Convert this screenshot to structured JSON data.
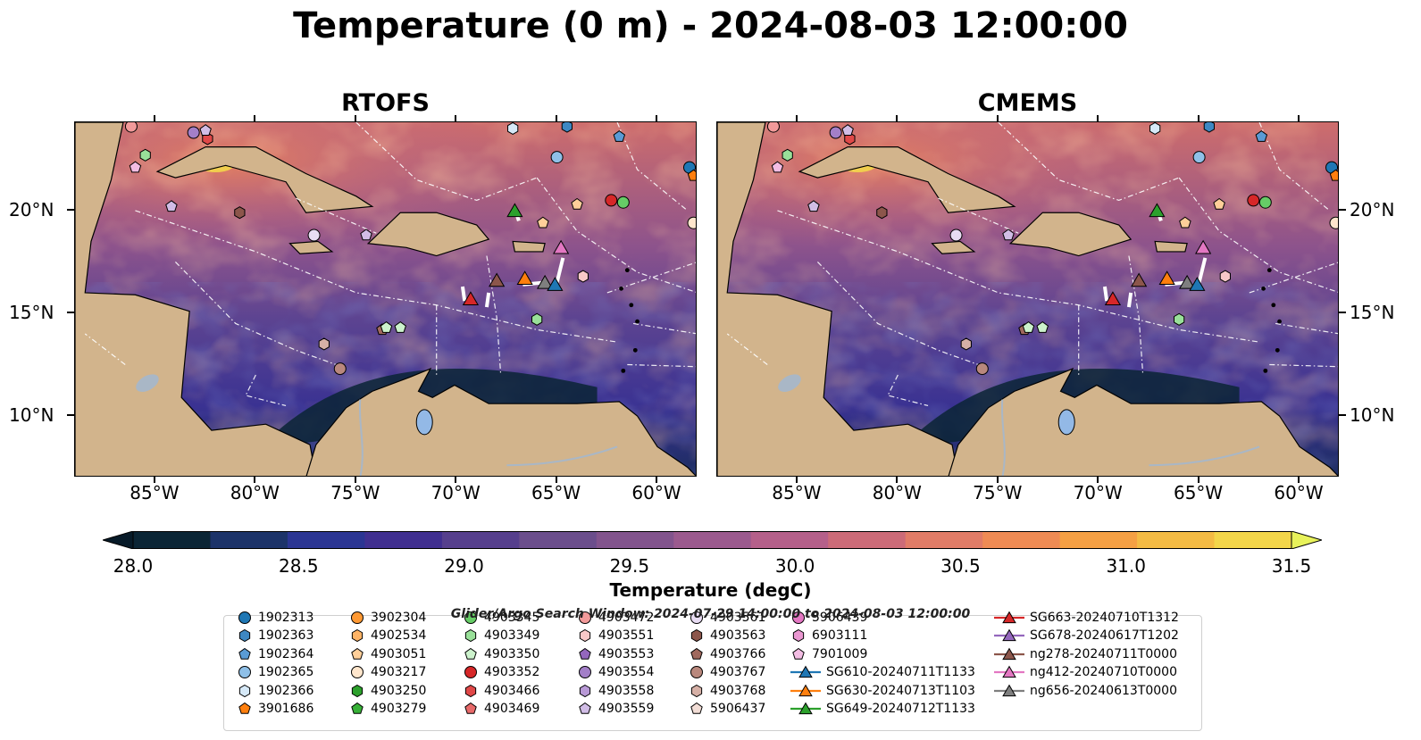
{
  "figure": {
    "title": "Temperature (0 m) - 2024-08-03 12:00:00",
    "colors": {
      "land": "#d2b48c",
      "water_body": "#93b9e6",
      "river": "#a9b7c6"
    }
  },
  "chart_data": [
    {
      "type": "heatmap",
      "title": "RTOFS",
      "x_ticks": [
        "85°W",
        "80°W",
        "75°W",
        "70°W",
        "65°W",
        "60°W"
      ],
      "y_ticks": [
        "20°N",
        "15°N",
        "10°N"
      ],
      "lon_range": [
        -89,
        -58
      ],
      "lat_range": [
        7,
        24.3
      ]
    },
    {
      "type": "heatmap",
      "title": "CMEMS",
      "x_ticks": [
        "85°W",
        "80°W",
        "75°W",
        "70°W",
        "65°W",
        "60°W"
      ],
      "y_ticks": [
        "20°N",
        "15°N",
        "10°N"
      ],
      "lon_range": [
        -89,
        -58
      ],
      "lat_range": [
        7,
        24.3
      ]
    }
  ],
  "colorbar": {
    "label": "Temperature (degC)",
    "min": 28.0,
    "max": 31.5,
    "step": 0.25,
    "ticks": [
      "28.0",
      "28.5",
      "29.0",
      "29.5",
      "30.0",
      "30.5",
      "31.0",
      "31.5"
    ],
    "extend": "both",
    "colors": [
      "#0b2535",
      "#1c3369",
      "#2b3593",
      "#402f90",
      "#563f8d",
      "#6b4e8c",
      "#82548d",
      "#9b5a8e",
      "#b5608a",
      "#cc6b78",
      "#e17c67",
      "#ef8b54",
      "#f5a044",
      "#f4bb44",
      "#f3d64a"
    ],
    "under_color": "#071a28",
    "over_color": "#e8f25a"
  },
  "legend": {
    "title": "Glider/Argo Search Window: 2024-07-29 14:00:00 to 2024-08-03 12:00:00",
    "columns": [
      [
        {
          "label": "1902313",
          "marker": "circle",
          "color": "#1f77b4"
        },
        {
          "label": "1902363",
          "marker": "hexagon",
          "color": "#3e88c3"
        },
        {
          "label": "1902364",
          "marker": "pentagon",
          "color": "#5a9bd5"
        },
        {
          "label": "1902365",
          "marker": "circle",
          "color": "#8fc0e8"
        },
        {
          "label": "1902366",
          "marker": "hexagon",
          "color": "#d6e9f8"
        },
        {
          "label": "3901686",
          "marker": "pentagon",
          "color": "#ff7f0e"
        }
      ],
      [
        {
          "label": "3902304",
          "marker": "circle",
          "color": "#ff9933"
        },
        {
          "label": "4902534",
          "marker": "hexagon",
          "color": "#ffb466"
        },
        {
          "label": "4903051",
          "marker": "pentagon",
          "color": "#ffcf99"
        },
        {
          "label": "4903217",
          "marker": "circle",
          "color": "#ffe6cc"
        },
        {
          "label": "4903250",
          "marker": "hexagon",
          "color": "#2ca02c"
        },
        {
          "label": "4903279",
          "marker": "pentagon",
          "color": "#37b137"
        }
      ],
      [
        {
          "label": "4903345",
          "marker": "circle",
          "color": "#66cc66"
        },
        {
          "label": "4903349",
          "marker": "hexagon",
          "color": "#99e099"
        },
        {
          "label": "4903350",
          "marker": "pentagon",
          "color": "#ccf2cc"
        },
        {
          "label": "4903352",
          "marker": "circle",
          "color": "#d62728"
        },
        {
          "label": "4903466",
          "marker": "hexagon",
          "color": "#e04848"
        },
        {
          "label": "4903469",
          "marker": "pentagon",
          "color": "#e86a6a"
        }
      ],
      [
        {
          "label": "4903472",
          "marker": "circle",
          "color": "#f29a9a"
        },
        {
          "label": "4903551",
          "marker": "hexagon",
          "color": "#f8c8c8"
        },
        {
          "label": "4903553",
          "marker": "pentagon",
          "color": "#9467bd"
        },
        {
          "label": "4903554",
          "marker": "circle",
          "color": "#a37fc8"
        },
        {
          "label": "4903558",
          "marker": "hexagon",
          "color": "#b899d6"
        },
        {
          "label": "4903559",
          "marker": "pentagon",
          "color": "#d1bde6"
        }
      ],
      [
        {
          "label": "4903561",
          "marker": "circle",
          "color": "#e8dcf3"
        },
        {
          "label": "4903563",
          "marker": "hexagon",
          "color": "#8c564b"
        },
        {
          "label": "4903766",
          "marker": "pentagon",
          "color": "#a0695e"
        },
        {
          "label": "4903767",
          "marker": "circle",
          "color": "#b9887d"
        },
        {
          "label": "4903768",
          "marker": "hexagon",
          "color": "#d6b0a6"
        },
        {
          "label": "5906437",
          "marker": "pentagon",
          "color": "#f2ddd6"
        }
      ],
      [
        {
          "label": "5906439",
          "marker": "circle",
          "color": "#e377c2"
        },
        {
          "label": "6903111",
          "marker": "hexagon",
          "color": "#ea97d1"
        },
        {
          "label": "7901009",
          "marker": "pentagon",
          "color": "#f3bde3"
        },
        {
          "label": "SG610-20240711T1133",
          "marker": "line-triangle",
          "color": "#1f77b4"
        },
        {
          "label": "SG630-20240713T1103",
          "marker": "line-triangle",
          "color": "#ff7f0e"
        },
        {
          "label": "SG649-20240712T1133",
          "marker": "line-triangle",
          "color": "#2ca02c"
        }
      ],
      [
        {
          "label": "SG663-20240710T1312",
          "marker": "line-triangle",
          "color": "#d62728"
        },
        {
          "label": "SG678-20240617T1202",
          "marker": "line-triangle",
          "color": "#9467bd"
        },
        {
          "label": "ng278-20240711T0000",
          "marker": "line-triangle",
          "color": "#8c564b"
        },
        {
          "label": "ng412-20240710T0000",
          "marker": "line-triangle",
          "color": "#e377c2"
        },
        {
          "label": "ng656-20240613T0000",
          "marker": "line-triangle",
          "color": "#7f7f7f"
        }
      ]
    ]
  },
  "markers": [
    {
      "label": "1902313",
      "lon": -58.4,
      "lat": 22.1
    },
    {
      "label": "1902364",
      "lon": -61.9,
      "lat": 23.6
    },
    {
      "label": "1902365",
      "lon": -65.0,
      "lat": 22.6
    },
    {
      "label": "1902366",
      "lon": -67.2,
      "lat": 24.0
    },
    {
      "label": "1902363",
      "lon": -64.5,
      "lat": 24.1
    },
    {
      "label": "3901686",
      "lon": -58.2,
      "lat": 21.7
    },
    {
      "label": "4903466",
      "lon": -82.4,
      "lat": 23.5
    },
    {
      "label": "4903472",
      "lon": -86.2,
      "lat": 24.1
    },
    {
      "label": "4903554",
      "lon": -83.1,
      "lat": 23.8
    },
    {
      "label": "4903559",
      "lon": -82.5,
      "lat": 23.9
    },
    {
      "label": "4903349",
      "lon": -85.5,
      "lat": 22.7
    },
    {
      "label": "7901009",
      "lon": -86.0,
      "lat": 22.1
    },
    {
      "label": "4903559",
      "lon": -84.2,
      "lat": 20.2
    },
    {
      "label": "4903563",
      "lon": -80.8,
      "lat": 19.9
    },
    {
      "label": "4903561",
      "lon": -77.1,
      "lat": 18.8
    },
    {
      "label": "4903559",
      "lon": -74.5,
      "lat": 18.8
    },
    {
      "label": "4903352",
      "lon": -62.3,
      "lat": 20.5
    },
    {
      "label": "4903345",
      "lon": -61.7,
      "lat": 20.4
    },
    {
      "label": "4903051",
      "lon": -64.0,
      "lat": 20.3
    },
    {
      "label": "4903051",
      "lon": -65.7,
      "lat": 19.4
    },
    {
      "label": "4903551",
      "lon": -63.7,
      "lat": 16.8
    },
    {
      "label": "4903217",
      "lon": -58.2,
      "lat": 19.4
    },
    {
      "label": "4903349",
      "lon": -66.0,
      "lat": 14.7
    },
    {
      "label": "4903766",
      "lon": -73.7,
      "lat": 14.2
    },
    {
      "label": "4903350",
      "lon": -73.5,
      "lat": 14.3
    },
    {
      "label": "4903350",
      "lon": -72.8,
      "lat": 14.3
    },
    {
      "label": "4903768",
      "lon": -76.6,
      "lat": 13.5
    },
    {
      "label": "4903767",
      "lon": -75.8,
      "lat": 12.3
    },
    {
      "label": "SG649-20240712T1133",
      "lon": -67.1,
      "lat": 20.0,
      "marker": "triangle"
    },
    {
      "label": "ng412-20240710T0000",
      "lon": -64.8,
      "lat": 18.2,
      "marker": "triangle"
    },
    {
      "label": "ng278-20240711T0000",
      "lon": -68.0,
      "lat": 16.6,
      "marker": "triangle"
    },
    {
      "label": "SG630-20240713T1103",
      "lon": -66.6,
      "lat": 16.7,
      "marker": "triangle"
    },
    {
      "label": "ng656-20240613T0000",
      "lon": -65.6,
      "lat": 16.5,
      "marker": "triangle"
    },
    {
      "label": "SG610-20240711T1133",
      "lon": -65.1,
      "lat": 16.4,
      "marker": "triangle"
    },
    {
      "label": "SG663-20240710T1312",
      "lon": -69.3,
      "lat": 15.7,
      "marker": "triangle"
    }
  ]
}
